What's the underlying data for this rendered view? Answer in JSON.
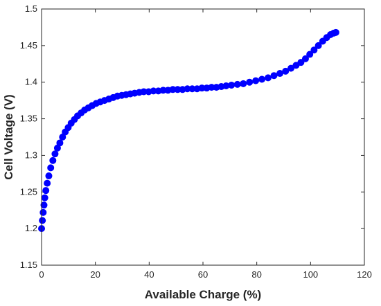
{
  "chart_data": {
    "type": "scatter",
    "title": "",
    "xlabel": "Available Charge (%)",
    "ylabel": "Cell Voltage (V)",
    "xlim": [
      0,
      120
    ],
    "ylim": [
      1.15,
      1.5
    ],
    "xticks": [
      0,
      20,
      40,
      60,
      80,
      100,
      120
    ],
    "xtick_labels": [
      "0",
      "20",
      "40",
      "60",
      "80",
      "100",
      "120"
    ],
    "yticks": [
      1.15,
      1.2,
      1.25,
      1.3,
      1.35,
      1.4,
      1.45,
      1.5
    ],
    "ytick_labels": [
      "1.15",
      "1.2",
      "1.25",
      "1.3",
      "1.35",
      "1.4",
      "1.45",
      "1.5"
    ],
    "grid": false,
    "marker_color": "#0000ff",
    "series": [
      {
        "x": [
          0.0,
          0.3,
          0.6,
          0.9,
          1.2,
          1.6,
          2.1,
          2.7,
          3.4,
          4.2,
          5.0,
          5.9,
          6.8,
          7.8,
          8.8,
          9.9,
          11.0,
          12.2,
          13.4,
          14.7,
          16.0,
          17.4,
          18.8,
          20.3,
          21.8,
          23.4,
          25.0,
          26.6,
          28.2,
          29.8,
          31.4,
          33.0,
          34.6,
          36.3,
          38.0,
          39.8,
          41.6,
          43.4,
          45.2,
          47.0,
          48.8,
          50.6,
          52.4,
          54.2,
          56.0,
          57.8,
          59.6,
          61.4,
          63.2,
          65.0,
          66.8,
          68.6,
          70.6,
          72.8,
          75.0,
          77.3,
          79.6,
          81.9,
          84.2,
          86.4,
          88.6,
          90.7,
          92.7,
          94.6,
          96.4,
          98.1,
          99.7,
          101.3,
          102.9,
          104.5,
          106.0,
          107.4,
          108.6,
          109.4
        ],
        "y": [
          1.2,
          1.211,
          1.222,
          1.232,
          1.242,
          1.252,
          1.262,
          1.272,
          1.283,
          1.293,
          1.302,
          1.31,
          1.317,
          1.325,
          1.332,
          1.338,
          1.344,
          1.349,
          1.354,
          1.358,
          1.362,
          1.365,
          1.368,
          1.371,
          1.373,
          1.375,
          1.377,
          1.379,
          1.381,
          1.382,
          1.383,
          1.384,
          1.385,
          1.386,
          1.387,
          1.387,
          1.388,
          1.388,
          1.389,
          1.389,
          1.39,
          1.39,
          1.39,
          1.391,
          1.391,
          1.391,
          1.392,
          1.392,
          1.393,
          1.393,
          1.394,
          1.395,
          1.396,
          1.397,
          1.398,
          1.4,
          1.402,
          1.404,
          1.406,
          1.409,
          1.412,
          1.415,
          1.419,
          1.423,
          1.427,
          1.432,
          1.438,
          1.444,
          1.45,
          1.456,
          1.461,
          1.465,
          1.467,
          1.468
        ]
      }
    ]
  }
}
